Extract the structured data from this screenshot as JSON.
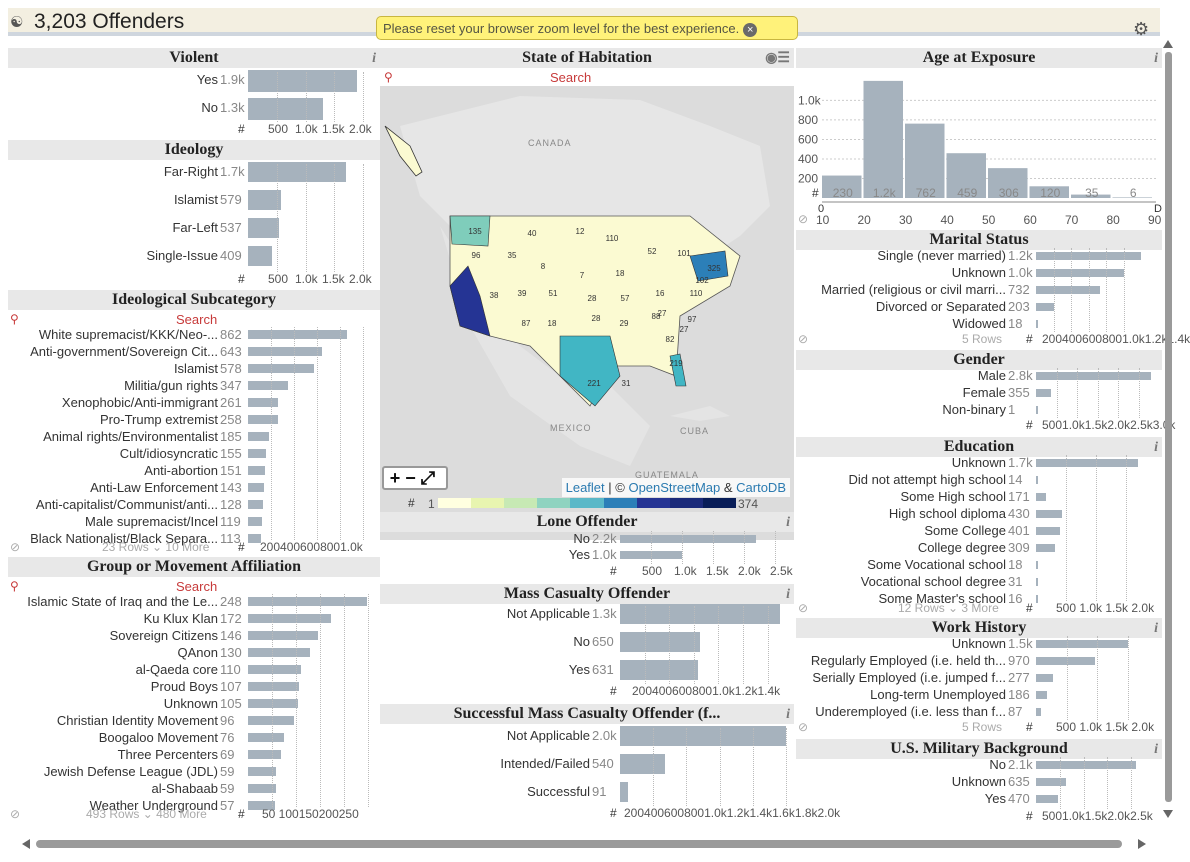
{
  "app": {
    "title": "3,203 Offenders",
    "logo_icon": "binoculars-icon",
    "notice": "Please reset your browser zoom level for the best experience."
  },
  "violent": {
    "title": "Violent",
    "items": [
      {
        "label": "Yes",
        "value": "1.9k",
        "n": 1900
      },
      {
        "label": "No",
        "value": "1.3k",
        "n": 1300
      }
    ],
    "ticks": [
      "500",
      "1.0k",
      "1.5k",
      "2.0k"
    ]
  },
  "ideology": {
    "title": "Ideology",
    "items": [
      {
        "label": "Far-Right",
        "value": "1.7k",
        "n": 1700
      },
      {
        "label": "Islamist",
        "value": "579",
        "n": 579
      },
      {
        "label": "Far-Left",
        "value": "537",
        "n": 537
      },
      {
        "label": "Single-Issue",
        "value": "409",
        "n": 409
      }
    ],
    "ticks": [
      "500",
      "1.0k",
      "1.5k",
      "2.0k"
    ]
  },
  "subcat": {
    "title": "Ideological Subcategory",
    "search": "Search",
    "ticks": "2004006008001.0k",
    "footer": "23 Rows ⌄ 10 More",
    "items": [
      {
        "label": "White supremacist/KKK/Neo-...",
        "value": "862",
        "n": 862
      },
      {
        "label": "Anti-government/Sovereign Cit...",
        "value": "643",
        "n": 643
      },
      {
        "label": "Islamist",
        "value": "578",
        "n": 578
      },
      {
        "label": "Militia/gun rights",
        "value": "347",
        "n": 347
      },
      {
        "label": "Xenophobic/Anti-immigrant",
        "value": "261",
        "n": 261
      },
      {
        "label": "Pro-Trump extremist",
        "value": "258",
        "n": 258
      },
      {
        "label": "Animal rights/Environmentalist",
        "value": "185",
        "n": 185
      },
      {
        "label": "Cult/idiosyncratic",
        "value": "155",
        "n": 155
      },
      {
        "label": "Anti-abortion",
        "value": "151",
        "n": 151
      },
      {
        "label": "Anti-Law Enforcement",
        "value": "143",
        "n": 143
      },
      {
        "label": "Anti-capitalist/Communist/anti...",
        "value": "128",
        "n": 128
      },
      {
        "label": "Male supremacist/Incel",
        "value": "119",
        "n": 119
      },
      {
        "label": "Black Nationalist/Black Separa...",
        "value": "113",
        "n": 113
      }
    ]
  },
  "group": {
    "title": "Group or Movement Affiliation",
    "search": "Search",
    "ticks": "50 100150200250",
    "footer": "493 Rows ⌄ 480 More",
    "items": [
      {
        "label": "Islamic State of Iraq and the Le...",
        "value": "248",
        "n": 248
      },
      {
        "label": "Ku Klux Klan",
        "value": "172",
        "n": 172
      },
      {
        "label": "Sovereign Citizens",
        "value": "146",
        "n": 146
      },
      {
        "label": "QAnon",
        "value": "130",
        "n": 130
      },
      {
        "label": "al-Qaeda core",
        "value": "110",
        "n": 110
      },
      {
        "label": "Proud Boys",
        "value": "107",
        "n": 107
      },
      {
        "label": "Unknown",
        "value": "105",
        "n": 105
      },
      {
        "label": "Christian Identity Movement",
        "value": "96",
        "n": 96
      },
      {
        "label": "Boogaloo Movement",
        "value": "76",
        "n": 76
      },
      {
        "label": "Three Percenters",
        "value": "69",
        "n": 69
      },
      {
        "label": "Jewish Defense League (JDL)",
        "value": "59",
        "n": 59
      },
      {
        "label": "al-Shabaab",
        "value": "59",
        "n": 59
      },
      {
        "label": "Weather Underground",
        "value": "57",
        "n": 57
      }
    ]
  },
  "map": {
    "title": "State of Habitation",
    "search": "Search",
    "zoom_label": "+−⤢",
    "attr_leaflet": "Leaflet",
    "attr_sep": " | © ",
    "attr_osm": "OpenStreetMap",
    "attr_and": " & ",
    "attr_carto": "CartoDB",
    "places": [
      "CANADA",
      "MEXICO",
      "CUBA",
      "GUATEMALA"
    ],
    "legend_min": "1",
    "legend_max": "374",
    "legend_colors": [
      "#ffffe0",
      "#e8f5b0",
      "#c7e9b4",
      "#8fd3c0",
      "#5ab8c8",
      "#2c7fb8",
      "#253494",
      "#1b2a7a",
      "#081d58"
    ],
    "counts": [
      "135",
      "40",
      "12",
      "110",
      "52",
      "101",
      "96",
      "35",
      "8",
      "7",
      "18",
      "325",
      "102",
      "38",
      "39",
      "51",
      "28",
      "57",
      "16",
      "87",
      "18",
      "28",
      "29",
      "27",
      "110",
      "88",
      "97",
      "82",
      "27",
      "221",
      "31",
      "219"
    ]
  },
  "lone": {
    "title": "Lone Offender",
    "items": [
      {
        "label": "No",
        "value": "2.2k",
        "n": 2200
      },
      {
        "label": "Yes",
        "value": "1.0k",
        "n": 1000
      }
    ],
    "ticks": [
      "500",
      "1.0k",
      "1.5k",
      "2.0k",
      "2.5k"
    ]
  },
  "mass": {
    "title": "Mass Casualty Offender",
    "items": [
      {
        "label": "Not Applicable",
        "value": "1.3k",
        "n": 1300
      },
      {
        "label": "No",
        "value": "650",
        "n": 650
      },
      {
        "label": "Yes",
        "value": "631",
        "n": 631
      }
    ],
    "ticks": "2004006008001.0k1.2k1.4k"
  },
  "successful": {
    "title": "Successful Mass Casualty Offender (f...",
    "items": [
      {
        "label": "Not Applicable",
        "value": "2.0k",
        "n": 2000
      },
      {
        "label": "Intended/Failed",
        "value": "540",
        "n": 540
      },
      {
        "label": "Successful",
        "value": "91",
        "n": 91
      }
    ],
    "ticks": "2004006008001.0k1.2k1.4k1.6k1.8k2.0k"
  },
  "age": {
    "title": "Age at Exposure",
    "yticks": [
      "1.0k",
      "800",
      "600",
      "400",
      "200"
    ],
    "xticks": [
      "10",
      "20",
      "30",
      "40",
      "50",
      "60",
      "70",
      "80",
      "90"
    ],
    "bins": [
      {
        "label": "230",
        "n": 230
      },
      {
        "label": "1.2k",
        "n": 1200
      },
      {
        "label": "762",
        "n": 762
      },
      {
        "label": "459",
        "n": 459
      },
      {
        "label": "306",
        "n": 306
      },
      {
        "label": "120",
        "n": 120
      },
      {
        "label": "35",
        "n": 35
      },
      {
        "label": "6",
        "n": 6
      }
    ],
    "range_left": "0",
    "range_right": "D"
  },
  "marital": {
    "title": "Marital Status",
    "footer": "5 Rows",
    "ticks": "2004006008001.0k1.2k1.4k",
    "items": [
      {
        "label": "Single (never married)",
        "value": "1.2k",
        "n": 1200
      },
      {
        "label": "Unknown",
        "value": "1.0k",
        "n": 1000
      },
      {
        "label": "Married (religious or civil marri...",
        "value": "732",
        "n": 732
      },
      {
        "label": "Divorced or Separated",
        "value": "203",
        "n": 203
      },
      {
        "label": "Widowed",
        "value": "18",
        "n": 18
      }
    ]
  },
  "gender": {
    "title": "Gender",
    "ticks": "5001.0k1.5k2.0k2.5k3.0k",
    "items": [
      {
        "label": "Male",
        "value": "2.8k",
        "n": 2800
      },
      {
        "label": "Female",
        "value": "355",
        "n": 355
      },
      {
        "label": "Non-binary",
        "value": "1",
        "n": 1
      }
    ]
  },
  "education": {
    "title": "Education",
    "footer": "12 Rows ⌄ 3 More",
    "ticks": "500 1.0k 1.5k 2.0k",
    "items": [
      {
        "label": "Unknown",
        "value": "1.7k",
        "n": 1700
      },
      {
        "label": "Did not attempt high school",
        "value": "14",
        "n": 14
      },
      {
        "label": "Some High school",
        "value": "171",
        "n": 171
      },
      {
        "label": "High school diploma",
        "value": "430",
        "n": 430
      },
      {
        "label": "Some College",
        "value": "401",
        "n": 401
      },
      {
        "label": "College degree",
        "value": "309",
        "n": 309
      },
      {
        "label": "Some Vocational school",
        "value": "18",
        "n": 18
      },
      {
        "label": "Vocational school degree",
        "value": "31",
        "n": 31
      },
      {
        "label": "Some Master's school",
        "value": "16",
        "n": 16
      }
    ]
  },
  "work": {
    "title": "Work History",
    "footer": "5 Rows",
    "ticks": "500 1.0k 1.5k 2.0k",
    "items": [
      {
        "label": "Unknown",
        "value": "1.5k",
        "n": 1500
      },
      {
        "label": "Regularly Employed (i.e. held th...",
        "value": "970",
        "n": 970
      },
      {
        "label": "Serially Employed (i.e. jumped f...",
        "value": "277",
        "n": 277
      },
      {
        "label": "Long-term Unemployed",
        "value": "186",
        "n": 186
      },
      {
        "label": "Underemployed (i.e. less than f...",
        "value": "87",
        "n": 87
      }
    ]
  },
  "military": {
    "title": "U.S. Military Background",
    "ticks": "5001.0k1.5k2.0k2.5k",
    "items": [
      {
        "label": "No",
        "value": "2.1k",
        "n": 2100
      },
      {
        "label": "Unknown",
        "value": "635",
        "n": 635
      },
      {
        "label": "Yes",
        "value": "470",
        "n": 470
      }
    ]
  }
}
